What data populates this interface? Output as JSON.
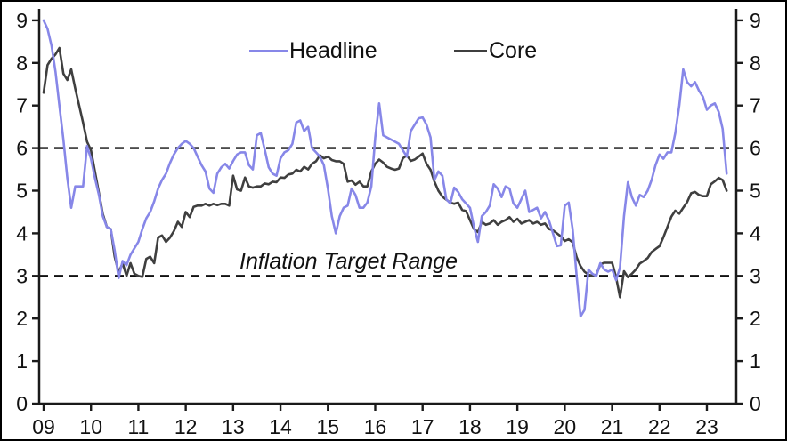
{
  "page": {
    "background_color": "#ffffff",
    "border_color": "#000000"
  },
  "legend": {
    "items": [
      {
        "label": "Headline",
        "color": "#8787e8"
      },
      {
        "label": "Core",
        "color": "#3f3f3f"
      }
    ]
  },
  "annotation": {
    "text": "Inflation Target Range"
  },
  "chart_data": {
    "type": "line",
    "title": "",
    "xlabel": "",
    "ylabel": "",
    "frequency": "monthly",
    "x_start_label": "09",
    "x_end_label": "23",
    "x_tick_labels": [
      "09",
      "10",
      "11",
      "12",
      "13",
      "14",
      "15",
      "16",
      "17",
      "18",
      "19",
      "20",
      "21",
      "22",
      "23"
    ],
    "y_tick_labels": [
      "0",
      "1",
      "2",
      "3",
      "4",
      "5",
      "6",
      "7",
      "8",
      "9"
    ],
    "ylim": [
      0,
      9
    ],
    "grid": false,
    "legend_position": "top-center",
    "axis_color": "#1a1a1a",
    "text_color": "#111111",
    "target_range": {
      "low": 3,
      "high": 6,
      "levels": [
        3,
        6
      ],
      "label": "Inflation Target Range",
      "line_style": "dashed",
      "line_color": "#111111"
    },
    "series": [
      {
        "name": "Headline",
        "color": "#8787e8",
        "values": [
          9.0,
          8.8,
          8.4,
          7.8,
          7.0,
          6.2,
          5.3,
          4.6,
          5.1,
          5.1,
          5.1,
          6.05,
          5.75,
          5.3,
          4.9,
          4.4,
          4.15,
          4.1,
          3.6,
          2.95,
          3.35,
          3.25,
          3.5,
          3.65,
          3.8,
          4.1,
          4.35,
          4.5,
          4.75,
          5.05,
          5.25,
          5.4,
          5.65,
          5.85,
          6.0,
          6.1,
          6.17,
          6.1,
          6.0,
          5.8,
          5.6,
          5.45,
          5.05,
          4.95,
          5.4,
          5.55,
          5.63,
          5.52,
          5.7,
          5.85,
          5.9,
          5.9,
          5.6,
          5.5,
          6.3,
          6.35,
          5.97,
          5.55,
          5.4,
          5.35,
          5.76,
          5.9,
          5.95,
          6.1,
          6.6,
          6.65,
          6.4,
          6.5,
          6.0,
          5.9,
          5.8,
          5.6,
          5.05,
          4.4,
          4.0,
          4.4,
          4.6,
          4.65,
          5.05,
          4.9,
          4.6,
          4.6,
          4.72,
          5.1,
          6.25,
          7.05,
          6.3,
          6.25,
          6.2,
          6.15,
          6.1,
          5.95,
          5.8,
          6.4,
          6.55,
          6.7,
          6.72,
          6.55,
          6.25,
          5.25,
          5.45,
          5.35,
          4.8,
          4.7,
          5.07,
          4.97,
          4.8,
          4.7,
          4.6,
          4.15,
          3.8,
          4.4,
          4.5,
          4.65,
          5.15,
          5.05,
          4.85,
          5.1,
          5.05,
          4.7,
          4.6,
          4.8,
          5.0,
          4.5,
          4.55,
          4.6,
          4.35,
          4.5,
          4.3,
          4.0,
          3.7,
          3.72,
          4.65,
          4.72,
          4.1,
          3.0,
          2.05,
          2.2,
          3.15,
          3.05,
          3.0,
          3.3,
          3.15,
          3.1,
          3.15,
          2.9,
          3.2,
          4.4,
          5.2,
          4.85,
          4.65,
          4.9,
          4.85,
          5.0,
          5.25,
          5.6,
          5.85,
          5.75,
          5.9,
          5.9,
          6.35,
          7.0,
          7.85,
          7.55,
          7.45,
          7.55,
          7.35,
          7.2,
          6.9,
          7.0,
          7.05,
          6.85,
          6.45,
          5.4
        ]
      },
      {
        "name": "Core",
        "color": "#3f3f3f",
        "values": [
          7.3,
          7.95,
          8.1,
          8.2,
          8.35,
          7.75,
          7.6,
          7.85,
          7.4,
          7.0,
          6.6,
          6.15,
          5.95,
          5.45,
          4.95,
          4.45,
          4.15,
          4.1,
          3.45,
          3.08,
          3.3,
          3.0,
          3.3,
          3.05,
          3.0,
          2.98,
          3.4,
          3.45,
          3.3,
          3.9,
          3.95,
          3.8,
          3.9,
          4.05,
          4.27,
          4.15,
          4.5,
          4.38,
          4.62,
          4.65,
          4.65,
          4.69,
          4.65,
          4.69,
          4.66,
          4.69,
          4.69,
          4.65,
          5.35,
          5.03,
          5.0,
          5.31,
          5.1,
          5.07,
          5.1,
          5.1,
          5.17,
          5.15,
          5.21,
          5.2,
          5.31,
          5.3,
          5.38,
          5.4,
          5.49,
          5.45,
          5.56,
          5.5,
          5.63,
          5.69,
          5.83,
          5.76,
          5.8,
          5.72,
          5.69,
          5.69,
          5.63,
          5.21,
          5.24,
          5.14,
          5.21,
          5.1,
          5.1,
          5.45,
          5.63,
          5.73,
          5.66,
          5.56,
          5.52,
          5.49,
          5.52,
          5.76,
          5.83,
          5.7,
          5.73,
          5.8,
          5.87,
          5.63,
          5.49,
          5.21,
          5.0,
          4.86,
          4.79,
          4.72,
          4.69,
          4.72,
          4.55,
          4.52,
          4.31,
          4.1,
          4.03,
          4.27,
          4.2,
          4.23,
          4.31,
          4.2,
          4.27,
          4.31,
          4.38,
          4.27,
          4.34,
          4.23,
          4.27,
          4.31,
          4.23,
          4.27,
          4.2,
          4.23,
          4.1,
          4.07,
          4.0,
          3.93,
          3.82,
          3.86,
          3.79,
          3.44,
          3.23,
          3.1,
          3.03,
          3.0,
          3.03,
          3.27,
          3.31,
          3.31,
          3.31,
          2.97,
          2.5,
          3.11,
          2.97,
          3.05,
          3.15,
          3.29,
          3.35,
          3.42,
          3.56,
          3.63,
          3.7,
          3.91,
          4.15,
          4.39,
          4.53,
          4.46,
          4.6,
          4.73,
          4.94,
          4.97,
          4.9,
          4.87,
          4.87,
          5.15,
          5.22,
          5.3,
          5.25,
          5.0
        ]
      }
    ]
  }
}
